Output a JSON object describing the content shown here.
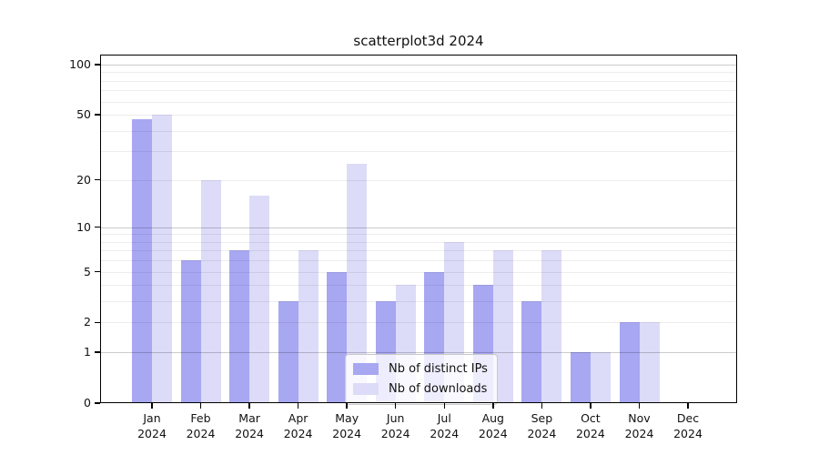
{
  "title": "scatterplot3d 2024",
  "chart_data": {
    "type": "bar",
    "title": "scatterplot3d 2024",
    "categories": [
      "Jan 2024",
      "Feb 2024",
      "Mar 2024",
      "Apr 2024",
      "May 2024",
      "Jun 2024",
      "Jul 2024",
      "Aug 2024",
      "Sep 2024",
      "Oct 2024",
      "Nov 2024",
      "Dec 2024"
    ],
    "series": [
      {
        "name": "Nb of distinct IPs",
        "color": "#a8a7f2",
        "values": [
          47,
          6,
          7,
          3,
          5,
          3,
          5,
          4,
          3,
          1,
          2,
          0
        ]
      },
      {
        "name": "Nb of downloads",
        "color": "#dcdbf8",
        "values": [
          50,
          20,
          16,
          7,
          25,
          4,
          8,
          7,
          7,
          1,
          2,
          0
        ]
      }
    ],
    "yscale": "log1p",
    "yticks": [
      0,
      1,
      2,
      5,
      10,
      20,
      50,
      100
    ],
    "ylim": [
      0,
      115
    ],
    "xlabel": "",
    "ylabel": "",
    "grid": true,
    "legend_position": "lower center",
    "colors": {
      "axis": "#000000",
      "minor_grid": "#ededed",
      "major_grid": "#cccccc",
      "background": "#ffffff"
    }
  }
}
